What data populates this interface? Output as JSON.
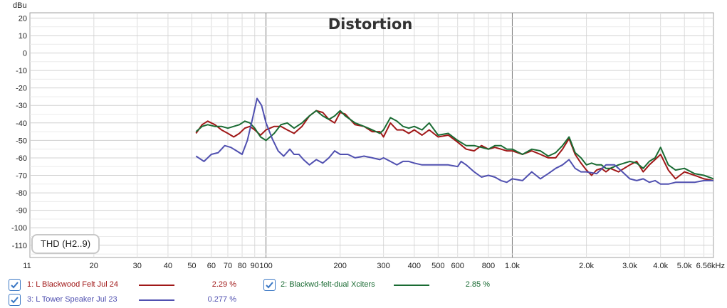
{
  "chart_data": {
    "type": "line",
    "title": "Distortion",
    "ylabel": "dBu",
    "xlabel": "",
    "xscale": "log",
    "xlim": [
      11,
      6560
    ],
    "ylim": [
      -117,
      23
    ],
    "grid": true,
    "legend_placement": "bottom",
    "x_tick_values": [
      11,
      20,
      30,
      40,
      50,
      60,
      70,
      80,
      90,
      100,
      200,
      300,
      400,
      500,
      600,
      800,
      1000,
      2000,
      3000,
      4000,
      5000,
      6560
    ],
    "x_tick_labels": [
      "11",
      "20",
      "30",
      "40",
      "50",
      "60",
      "70",
      "80",
      "90",
      "100",
      "200",
      "300",
      "400",
      "500",
      "600",
      "800",
      "1.0k",
      "2.0k",
      "3.0k",
      "4.0k",
      "5.0k",
      "6.56kHz"
    ],
    "y_tick_values": [
      20,
      10,
      0,
      -10,
      -20,
      -30,
      -40,
      -50,
      -60,
      -70,
      -80,
      -90,
      -100,
      -110
    ],
    "y_tick_labels": [
      "20",
      "10",
      "0",
      "-10",
      "-20",
      "-30",
      "-40",
      "-50",
      "-60",
      "-70",
      "-80",
      "-90",
      "-100",
      "-110"
    ],
    "annotation": "THD (H2..9)",
    "series": [
      {
        "name": "1: L Blackwood Felt Jul 24",
        "value_label": "2.29 %",
        "color": "#a01818",
        "points": [
          [
            52,
            -46
          ],
          [
            55,
            -41
          ],
          [
            58,
            -39
          ],
          [
            62,
            -41
          ],
          [
            66,
            -44
          ],
          [
            70,
            -46
          ],
          [
            74,
            -48
          ],
          [
            78,
            -46
          ],
          [
            82,
            -43
          ],
          [
            86,
            -42
          ],
          [
            90,
            -44
          ],
          [
            95,
            -47
          ],
          [
            100,
            -44
          ],
          [
            108,
            -42
          ],
          [
            115,
            -42
          ],
          [
            122,
            -44
          ],
          [
            130,
            -46
          ],
          [
            140,
            -42
          ],
          [
            150,
            -36
          ],
          [
            160,
            -33
          ],
          [
            170,
            -34
          ],
          [
            180,
            -38
          ],
          [
            190,
            -40
          ],
          [
            200,
            -34
          ],
          [
            210,
            -35
          ],
          [
            230,
            -41
          ],
          [
            250,
            -42
          ],
          [
            270,
            -45
          ],
          [
            290,
            -45
          ],
          [
            300,
            -48
          ],
          [
            320,
            -40
          ],
          [
            340,
            -44
          ],
          [
            360,
            -44
          ],
          [
            380,
            -46
          ],
          [
            400,
            -44
          ],
          [
            430,
            -47
          ],
          [
            460,
            -44
          ],
          [
            500,
            -48
          ],
          [
            550,
            -47
          ],
          [
            600,
            -51
          ],
          [
            650,
            -55
          ],
          [
            700,
            -56
          ],
          [
            750,
            -53
          ],
          [
            800,
            -55
          ],
          [
            850,
            -54
          ],
          [
            900,
            -55
          ],
          [
            950,
            -56
          ],
          [
            1000,
            -56
          ],
          [
            1100,
            -58
          ],
          [
            1200,
            -56
          ],
          [
            1300,
            -58
          ],
          [
            1400,
            -60
          ],
          [
            1500,
            -60
          ],
          [
            1600,
            -55
          ],
          [
            1700,
            -49
          ],
          [
            1800,
            -58
          ],
          [
            1900,
            -63
          ],
          [
            2000,
            -67
          ],
          [
            2100,
            -70
          ],
          [
            2200,
            -67
          ],
          [
            2300,
            -66
          ],
          [
            2400,
            -68
          ],
          [
            2500,
            -66
          ],
          [
            2700,
            -68
          ],
          [
            3000,
            -64
          ],
          [
            3200,
            -62
          ],
          [
            3400,
            -68
          ],
          [
            3600,
            -64
          ],
          [
            3800,
            -61
          ],
          [
            4000,
            -58
          ],
          [
            4300,
            -67
          ],
          [
            4600,
            -72
          ],
          [
            5000,
            -68
          ],
          [
            5500,
            -70
          ],
          [
            6000,
            -72
          ],
          [
            6560,
            -73
          ]
        ]
      },
      {
        "name": "2: Blackwd-felt-dual Xciters",
        "value_label": "2.85 %",
        "color": "#1a6b33",
        "points": [
          [
            52,
            -45
          ],
          [
            55,
            -42
          ],
          [
            58,
            -41
          ],
          [
            62,
            -42
          ],
          [
            66,
            -42
          ],
          [
            70,
            -43
          ],
          [
            74,
            -42
          ],
          [
            78,
            -41
          ],
          [
            82,
            -39
          ],
          [
            86,
            -40
          ],
          [
            90,
            -43
          ],
          [
            95,
            -48
          ],
          [
            100,
            -50
          ],
          [
            108,
            -46
          ],
          [
            115,
            -41
          ],
          [
            122,
            -40
          ],
          [
            130,
            -43
          ],
          [
            140,
            -40
          ],
          [
            150,
            -36
          ],
          [
            160,
            -33
          ],
          [
            170,
            -36
          ],
          [
            180,
            -38
          ],
          [
            190,
            -36
          ],
          [
            200,
            -33
          ],
          [
            210,
            -36
          ],
          [
            230,
            -40
          ],
          [
            250,
            -42
          ],
          [
            270,
            -44
          ],
          [
            290,
            -46
          ],
          [
            300,
            -44
          ],
          [
            320,
            -37
          ],
          [
            340,
            -39
          ],
          [
            360,
            -42
          ],
          [
            380,
            -43
          ],
          [
            400,
            -42
          ],
          [
            430,
            -44
          ],
          [
            460,
            -40
          ],
          [
            500,
            -47
          ],
          [
            550,
            -46
          ],
          [
            600,
            -50
          ],
          [
            650,
            -53
          ],
          [
            700,
            -53
          ],
          [
            750,
            -54
          ],
          [
            800,
            -55
          ],
          [
            850,
            -53
          ],
          [
            900,
            -53
          ],
          [
            950,
            -55
          ],
          [
            1000,
            -55
          ],
          [
            1100,
            -58
          ],
          [
            1200,
            -55
          ],
          [
            1300,
            -56
          ],
          [
            1400,
            -59
          ],
          [
            1500,
            -57
          ],
          [
            1600,
            -53
          ],
          [
            1700,
            -48
          ],
          [
            1800,
            -57
          ],
          [
            1900,
            -60
          ],
          [
            2000,
            -64
          ],
          [
            2100,
            -63
          ],
          [
            2200,
            -64
          ],
          [
            2300,
            -64
          ],
          [
            2400,
            -66
          ],
          [
            2500,
            -66
          ],
          [
            2700,
            -64
          ],
          [
            3000,
            -62
          ],
          [
            3200,
            -63
          ],
          [
            3400,
            -66
          ],
          [
            3600,
            -62
          ],
          [
            3800,
            -60
          ],
          [
            4000,
            -54
          ],
          [
            4300,
            -64
          ],
          [
            4600,
            -67
          ],
          [
            5000,
            -66
          ],
          [
            5500,
            -69
          ],
          [
            6000,
            -70
          ],
          [
            6560,
            -72
          ]
        ]
      },
      {
        "name": "3: L Tower Speaker Jul 23",
        "value_label": "0.277 %",
        "color": "#5050b0",
        "points": [
          [
            52,
            -59
          ],
          [
            56,
            -62
          ],
          [
            60,
            -58
          ],
          [
            64,
            -57
          ],
          [
            68,
            -53
          ],
          [
            72,
            -54
          ],
          [
            76,
            -56
          ],
          [
            80,
            -58
          ],
          [
            84,
            -50
          ],
          [
            88,
            -38
          ],
          [
            92,
            -26
          ],
          [
            96,
            -30
          ],
          [
            100,
            -40
          ],
          [
            106,
            -49
          ],
          [
            112,
            -56
          ],
          [
            118,
            -59
          ],
          [
            125,
            -55
          ],
          [
            130,
            -58
          ],
          [
            136,
            -58
          ],
          [
            142,
            -61
          ],
          [
            150,
            -64
          ],
          [
            160,
            -61
          ],
          [
            170,
            -63
          ],
          [
            180,
            -60
          ],
          [
            190,
            -56
          ],
          [
            200,
            -58
          ],
          [
            215,
            -58
          ],
          [
            230,
            -60
          ],
          [
            250,
            -59
          ],
          [
            270,
            -60
          ],
          [
            290,
            -61
          ],
          [
            300,
            -60
          ],
          [
            320,
            -62
          ],
          [
            340,
            -64
          ],
          [
            360,
            -62
          ],
          [
            380,
            -62
          ],
          [
            400,
            -63
          ],
          [
            430,
            -64
          ],
          [
            460,
            -64
          ],
          [
            500,
            -64
          ],
          [
            550,
            -64
          ],
          [
            600,
            -65
          ],
          [
            620,
            -62
          ],
          [
            650,
            -64
          ],
          [
            700,
            -68
          ],
          [
            750,
            -71
          ],
          [
            800,
            -70
          ],
          [
            850,
            -71
          ],
          [
            900,
            -73
          ],
          [
            950,
            -74
          ],
          [
            1000,
            -72
          ],
          [
            1100,
            -73
          ],
          [
            1200,
            -68
          ],
          [
            1300,
            -72
          ],
          [
            1400,
            -69
          ],
          [
            1500,
            -66
          ],
          [
            1600,
            -64
          ],
          [
            1700,
            -61
          ],
          [
            1800,
            -66
          ],
          [
            1900,
            -68
          ],
          [
            2000,
            -68
          ],
          [
            2200,
            -69
          ],
          [
            2400,
            -64
          ],
          [
            2600,
            -64
          ],
          [
            2800,
            -68
          ],
          [
            3000,
            -72
          ],
          [
            3200,
            -73
          ],
          [
            3400,
            -72
          ],
          [
            3600,
            -74
          ],
          [
            3800,
            -73
          ],
          [
            4000,
            -75
          ],
          [
            4300,
            -75
          ],
          [
            4600,
            -74
          ],
          [
            5000,
            -74
          ],
          [
            5500,
            -74
          ],
          [
            6000,
            -73
          ],
          [
            6560,
            -73
          ]
        ]
      }
    ]
  },
  "legend": [
    {
      "name": "1: L Blackwood Felt Jul 24",
      "value": "2.29 %",
      "color": "#a01818",
      "checked": true
    },
    {
      "name": "2: Blackwd-felt-dual Xciters",
      "value": "2.85 %",
      "color": "#1a6b33",
      "checked": true
    },
    {
      "name": "3: L Tower Speaker Jul 23",
      "value": "0.277 %",
      "color": "#5050b0",
      "checked": true
    }
  ]
}
